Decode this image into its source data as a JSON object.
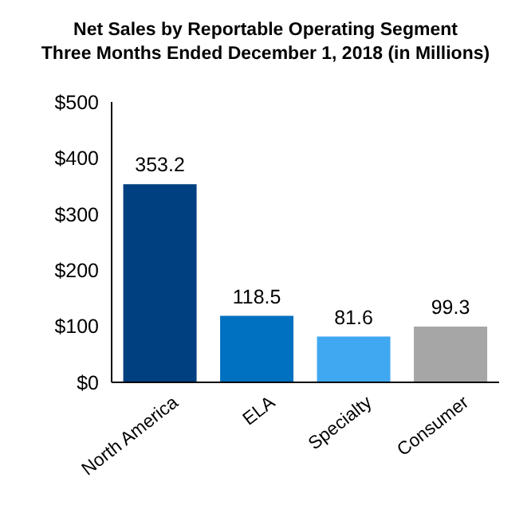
{
  "chart_data": {
    "type": "bar",
    "title": "Net Sales by Reportable Operating Segment",
    "subtitle": "Three Months Ended December 1, 2018 (in Millions)",
    "categories": [
      "North America",
      "ELA",
      "Specialty",
      "Consumer"
    ],
    "values": [
      353.2,
      118.5,
      81.6,
      99.3
    ],
    "colors": [
      "#004080",
      "#0070c0",
      "#40a8f0",
      "#a6a6a6"
    ],
    "ylim": [
      0,
      500
    ],
    "yticks": [
      {
        "value": 0,
        "label": "$0"
      },
      {
        "value": 100,
        "label": "$100"
      },
      {
        "value": 200,
        "label": "$200"
      },
      {
        "value": 300,
        "label": "$300"
      },
      {
        "value": 400,
        "label": "$400"
      },
      {
        "value": 500,
        "label": "$500"
      }
    ],
    "data_labels": true
  }
}
